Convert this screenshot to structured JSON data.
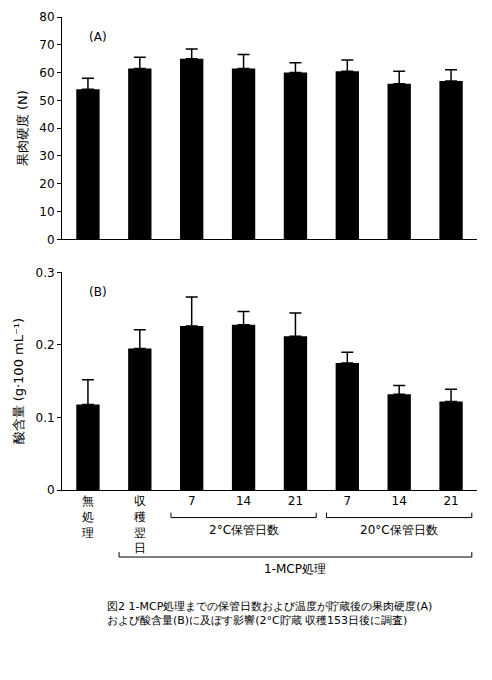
{
  "chart_data": [
    {
      "type": "bar",
      "panel_label": "(A)",
      "y_label": "果肉硬度 (N)",
      "categories": [
        "無処理",
        "収穫翌日",
        "7",
        "14",
        "21",
        "7",
        "14",
        "21"
      ],
      "values": [
        54,
        61.5,
        65,
        61.5,
        60,
        60.5,
        56,
        57
      ],
      "errors": [
        4,
        4,
        3.5,
        5,
        3.5,
        4,
        4.5,
        4
      ],
      "color": "#000000",
      "ylim": [
        0,
        80
      ],
      "yticks": [
        0,
        10,
        20,
        30,
        40,
        50,
        60,
        70,
        80
      ],
      "tick_labels": "y",
      "grid": false
    },
    {
      "type": "bar",
      "panel_label": "(B)",
      "y_label": "酸含量 (g·100 mL⁻¹)",
      "categories": [
        "無処理",
        "収穫翌日",
        "7",
        "14",
        "21",
        "7",
        "14",
        "21"
      ],
      "values": [
        0.118,
        0.195,
        0.226,
        0.228,
        0.212,
        0.175,
        0.132,
        0.122
      ],
      "errors": [
        0.034,
        0.026,
        0.04,
        0.018,
        0.032,
        0.015,
        0.012,
        0.017
      ],
      "color": "#000000",
      "ylim": [
        0,
        0.3
      ],
      "yticks": [
        0,
        0.1,
        0.2,
        0.3
      ],
      "grid": false,
      "groups": [
        {
          "label": "2°C保管日数",
          "start": 2,
          "end": 4
        },
        {
          "label": "20°C保管日数",
          "start": 5,
          "end": 7
        },
        {
          "label": "1-MCP処理",
          "start": 1,
          "end": 7
        }
      ]
    }
  ],
  "caption": [
    "図2 1-MCP処理までの保管日数および温度が貯蔵後の果肉硬度(A)",
    "および酸含量(B)に及ぼす影響(2°C貯蔵 収穫153日後に調査)"
  ]
}
